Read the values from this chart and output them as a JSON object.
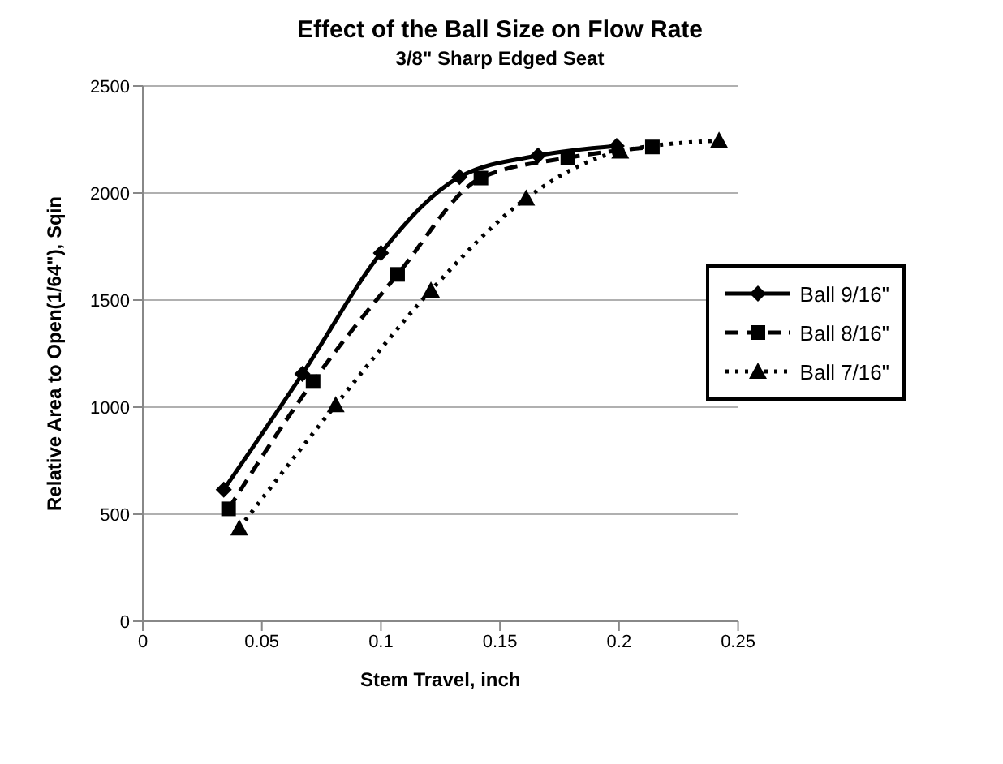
{
  "chart_data": {
    "type": "line",
    "title": "Effect of the Ball Size on Flow Rate",
    "subtitle": "3/8\" Sharp Edged Seat",
    "xlabel": "Stem Travel, inch",
    "ylabel": "Relative Area to Open(1/64\"), Sqin",
    "xlim": [
      0,
      0.25
    ],
    "xticks": [
      0,
      0.05,
      0.1,
      0.15,
      0.2,
      0.25
    ],
    "ylim": [
      0,
      2500
    ],
    "yticks": [
      0,
      500,
      1000,
      1500,
      2000,
      2500
    ],
    "grid": "y",
    "legend": "right",
    "series": [
      {
        "name": "Ball 9/16\"",
        "color": "#000000",
        "marker": "diamond",
        "line_style": "solid",
        "x": [
          0.034,
          0.067,
          0.1,
          0.133,
          0.166,
          0.199
        ],
        "values": [
          615,
          1155,
          1720,
          2075,
          2175,
          2220
        ]
      },
      {
        "name": "Ball 8/16\"",
        "color": "#000000",
        "marker": "square",
        "line_style": "dashed",
        "x": [
          0.036,
          0.0715,
          0.107,
          0.142,
          0.1785,
          0.214
        ],
        "values": [
          525,
          1120,
          1620,
          2070,
          2165,
          2215
        ]
      },
      {
        "name": "Ball 7/16\"",
        "color": "#000000",
        "marker": "triangle",
        "line_style": "dotted",
        "x": [
          0.0405,
          0.081,
          0.121,
          0.161,
          0.2005,
          0.242
        ],
        "values": [
          435,
          1010,
          1545,
          1975,
          2195,
          2245
        ]
      }
    ]
  }
}
